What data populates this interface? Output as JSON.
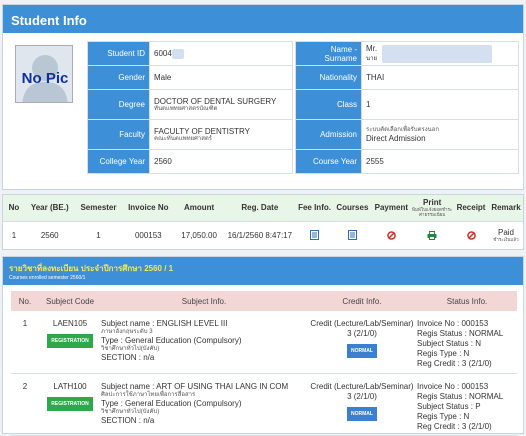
{
  "student_info": {
    "title": "Student Info",
    "photo_text": "No Pic",
    "fields": {
      "student_id_label": "Student ID",
      "student_id_value": "6004",
      "name_label": "Name - Surname",
      "name_line1": "Mr.",
      "name_line2": "นาย",
      "gender_label": "Gender",
      "gender_value": "Male",
      "nationality_label": "Nationality",
      "nationality_value": "THAI",
      "degree_label": "Degree",
      "degree_value": "DOCTOR OF DENTAL SURGERY",
      "degree_thai": "ทันตแพทยศาสตรบัณฑิต",
      "class_label": "Class",
      "class_value": "1",
      "faculty_label": "Faculty",
      "faculty_value": "FACULTY OF DENTISTRY",
      "faculty_thai": "คณะทันตแพทยศาสตร์",
      "admission_label": "Admission",
      "admission_thai": "ระบบคัดเลือกเพื่อรับตรงนอก",
      "admission_value": "Direct Admission",
      "college_year_label": "College Year",
      "college_year_value": "2560",
      "course_year_label": "Course Year",
      "course_year_value": "2555"
    }
  },
  "payment": {
    "headers": [
      "No",
      "Year (BE.)",
      "Semester",
      "Invoice No",
      "Amount",
      "Reg. Date",
      "Fee Info.",
      "Courses",
      "Payment",
      "Print",
      "Receipt",
      "Remark"
    ],
    "print_sub": "พิมพ์ใบแจ้งยอดชำระค่าธรรมเนียม",
    "rows": [
      {
        "no": "1",
        "year": "2560",
        "semester": "1",
        "invoice": "000153",
        "amount": "17,050.00",
        "reg_date": "16/1/2560 8:47:17",
        "remark": "Paid",
        "remark_sub": "ชำระเงินแล้ว"
      }
    ]
  },
  "registration": {
    "title": "รายวิชาที่ลงทะเบียน ประจำปีการศึกษา 2560 / 1",
    "subtitle": "Courses enrolled semester 2560/1",
    "headers": [
      "No.",
      "Subject Code",
      "Subject Info.",
      "Credit Info.",
      "Status Info."
    ],
    "rows": [
      {
        "no": "1",
        "code": "LAEN105",
        "badge": "REGISTRATION",
        "subject_name": "Subject name : ENGLISH LEVEL III",
        "subject_thai": "ภาษาอังกฤษระดับ 3",
        "type": "Type : General Education (Compulsory)",
        "type_thai": "วิชาศึกษาทั่วไป(บังคับ)",
        "section": "SECTION : n/a",
        "credit_line1": "Credit (Lecture/Lab/Seminar)",
        "credit_line2": "3 (2/1/0)",
        "credit_badge": "NORMAL",
        "status_invoice": "Invoice No : 000153",
        "status_regis": "Regis Status : NORMAL",
        "status_subject": "Subject Status : N",
        "status_type": "Regis Type : N",
        "status_credit": "Reg Credit : 3 (2/1/0)"
      },
      {
        "no": "2",
        "code": "LATH100",
        "badge": "REGISTRATION",
        "subject_name": "Subject name : ART OF USING THAI LANG IN COM",
        "subject_thai": "ศิลปะการใช้ภาษาไทยเพื่อการสื่อสาร",
        "type": "Type : General Education (Compulsory)",
        "type_thai": "วิชาศึกษาทั่วไป(บังคับ)",
        "section": "SECTION : n/a",
        "credit_line1": "Credit (Lecture/Lab/Seminar)",
        "credit_line2": "3 (2/1/0)",
        "credit_badge": "NORMAL",
        "status_invoice": "Invoice No : 000153",
        "status_regis": "Regis Status : NORMAL",
        "status_subject": "Subject Status : P",
        "status_type": "Regis Type : N",
        "status_credit": "Reg Credit : 3 (2/1/0)"
      }
    ]
  },
  "colors": {
    "header_blue": "#3d8fd8",
    "payment_header_green": "#e8f6e8",
    "reg_header_pink": "#f3d7d7",
    "reg_title_yellow": "#f7e94a",
    "badge_green": "#2ea84a",
    "badge_blue": "#3b7fd0",
    "cancel_red": "#d0261c",
    "print_green": "#1f8a3a"
  },
  "icons": {
    "fee_info": "document-icon",
    "courses": "document-icon",
    "payment": "cancel-circle-icon",
    "print": "printer-icon",
    "receipt": "cancel-circle-icon"
  }
}
